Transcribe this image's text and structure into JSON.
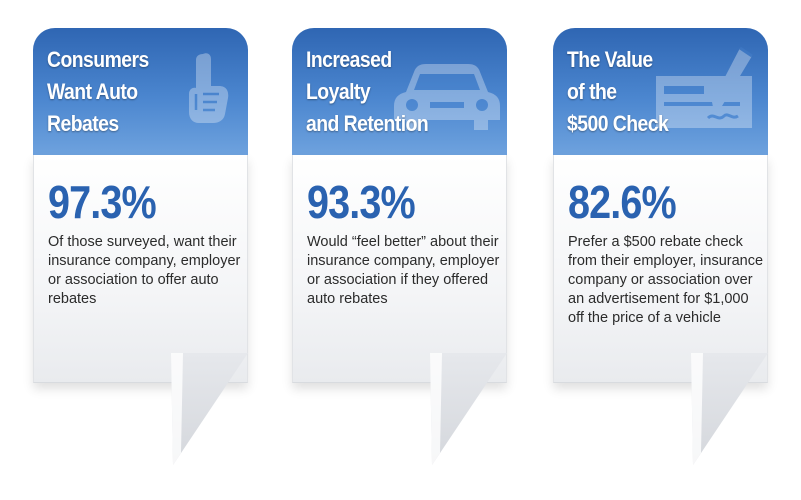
{
  "colors": {
    "header_blue_dark": "#2f66b3",
    "header_blue_light": "#6ea2de",
    "stat_blue": "#2a62b0",
    "text": "#2b2b2b"
  },
  "cards": [
    {
      "title_lines": [
        "Consumers",
        "Want Auto",
        "Rebates"
      ],
      "icon": "pointing-hand-icon",
      "stat": "97.3%",
      "description": "Of those surveyed, want their insurance company, employer or association to offer auto rebates"
    },
    {
      "title_lines": [
        "Increased",
        "Loyalty",
        "and Retention"
      ],
      "icon": "car-icon",
      "stat": "93.3%",
      "description": "Would “feel better” about their insurance company, employer or association if they offered auto rebates"
    },
    {
      "title_lines": [
        "The Value",
        "of the",
        "$500 Check"
      ],
      "icon": "check-and-pen-icon",
      "stat": "82.6%",
      "description": "Prefer a $500 rebate check from their employer, insurance company or association over an advertisement for $1,000 off the price of a vehicle"
    }
  ]
}
